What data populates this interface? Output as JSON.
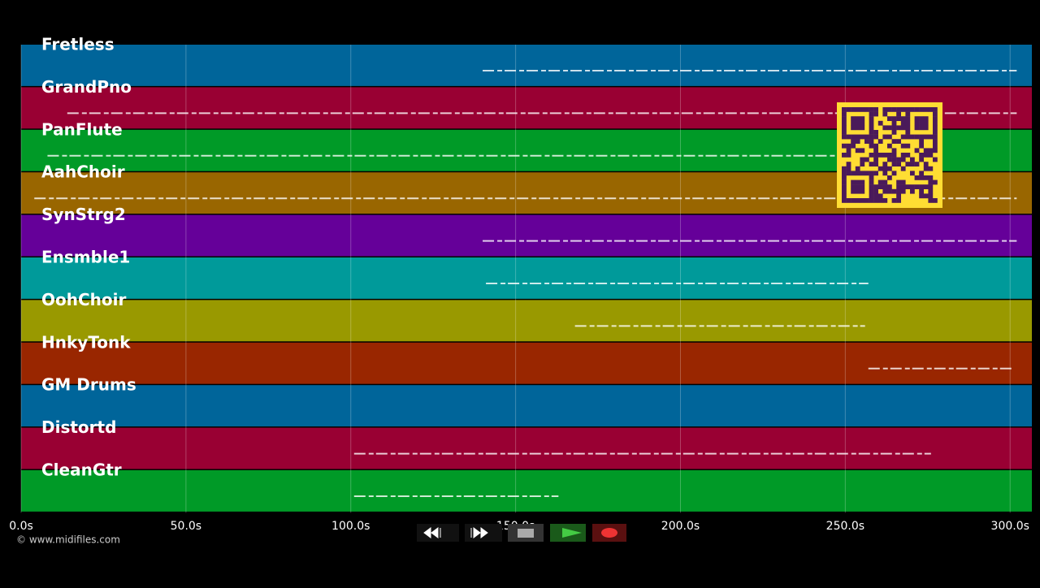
{
  "timeline": {
    "xlim": [
      0,
      306.6
    ],
    "xticks": [
      {
        "value": 0,
        "label": "0.0s"
      },
      {
        "value": 50,
        "label": "50.0s"
      },
      {
        "value": 100,
        "label": "100.0s"
      },
      {
        "value": 150,
        "label": "150.0s"
      },
      {
        "value": 200,
        "label": "200.0s"
      },
      {
        "value": 250,
        "label": "250.0s"
      },
      {
        "value": 300,
        "label": "300.0s"
      }
    ],
    "tracks": [
      {
        "name": "Fretless",
        "color": "#00659a",
        "note_range": [
          140,
          302
        ]
      },
      {
        "name": "GrandPno",
        "color": "#990033",
        "note_range": [
          14,
          302
        ]
      },
      {
        "name": "PanFlute",
        "color": "#009a27",
        "note_range": [
          8,
          247
        ]
      },
      {
        "name": "AahChoir",
        "color": "#996600",
        "note_range": [
          4,
          302
        ]
      },
      {
        "name": "SynStrg2",
        "color": "#650099",
        "note_range": [
          140,
          302
        ]
      },
      {
        "name": "Ensmble1",
        "color": "#009a9a",
        "note_range": [
          141,
          257
        ]
      },
      {
        "name": "OohChoir",
        "color": "#999900",
        "note_range": [
          168,
          256
        ]
      },
      {
        "name": "HnkyTonk",
        "color": "#992600",
        "note_range": [
          257,
          301
        ]
      },
      {
        "name": "GM Drums",
        "color": "#00659a",
        "note_range": null
      },
      {
        "name": "Distortd",
        "color": "#990033",
        "note_range": [
          101,
          276
        ]
      },
      {
        "name": "CleanGtr",
        "color": "#009a27",
        "note_range": [
          101,
          163
        ]
      }
    ]
  },
  "footer": "© www.midifiles.com"
}
